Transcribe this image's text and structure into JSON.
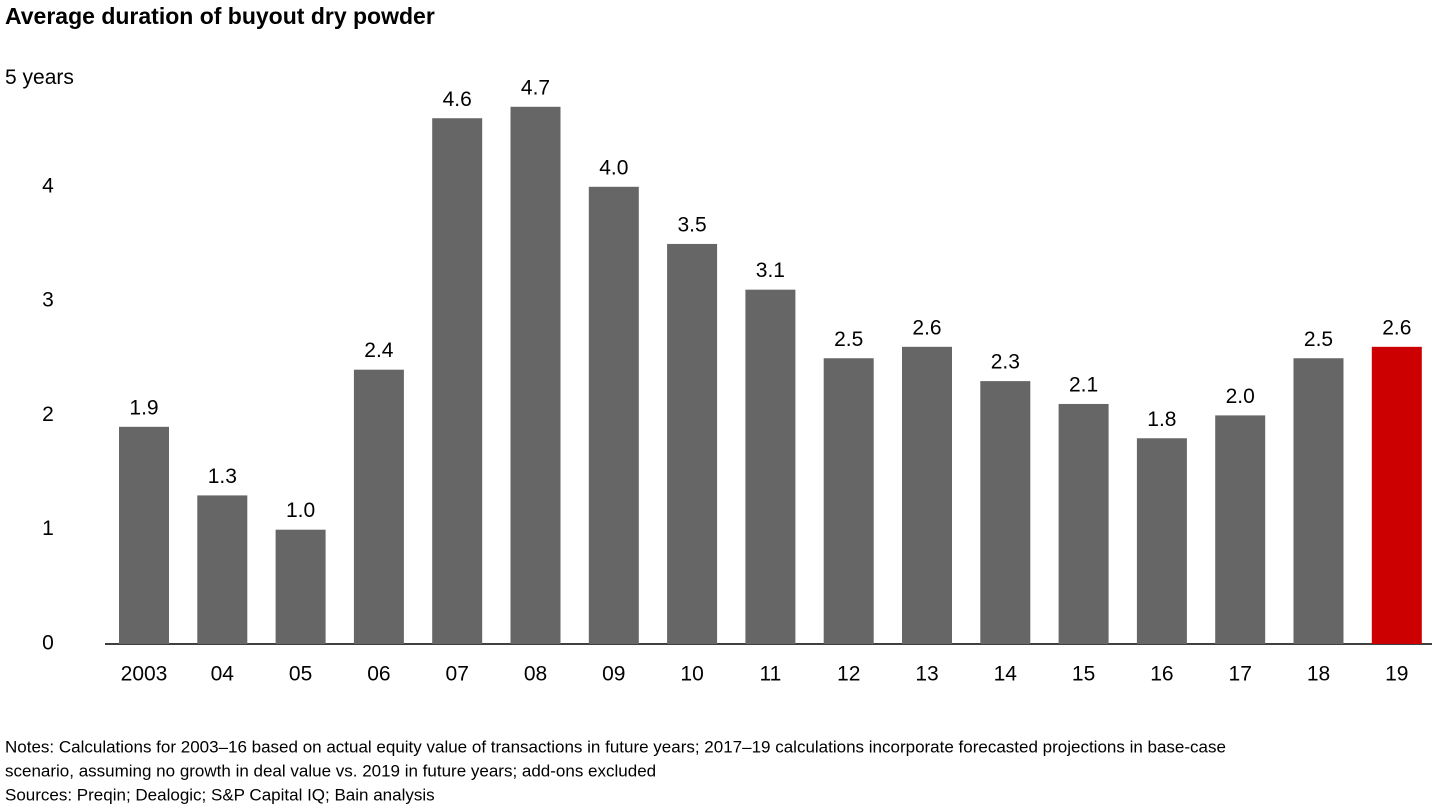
{
  "chart_data": {
    "type": "bar",
    "title": "Average duration of buyout dry powder",
    "categories": [
      "2003",
      "04",
      "05",
      "06",
      "07",
      "08",
      "09",
      "10",
      "11",
      "12",
      "13",
      "14",
      "15",
      "16",
      "17",
      "18",
      "19"
    ],
    "values": [
      1.9,
      1.3,
      1.0,
      2.4,
      4.6,
      4.7,
      4.0,
      3.5,
      3.1,
      2.5,
      2.6,
      2.3,
      2.1,
      1.8,
      2.0,
      2.5,
      2.6
    ],
    "value_labels": [
      "1.9",
      "1.3",
      "1.0",
      "2.4",
      "4.6",
      "4.7",
      "4.0",
      "3.5",
      "3.1",
      "2.5",
      "2.6",
      "2.3",
      "2.1",
      "1.8",
      "2.0",
      "2.5",
      "2.6"
    ],
    "colors": [
      "#666666",
      "#666666",
      "#666666",
      "#666666",
      "#666666",
      "#666666",
      "#666666",
      "#666666",
      "#666666",
      "#666666",
      "#666666",
      "#666666",
      "#666666",
      "#666666",
      "#666666",
      "#666666",
      "#cc0000"
    ],
    "ylim": [
      0,
      5
    ],
    "yticks": [
      0,
      1,
      2,
      3,
      4,
      {
        "value": 5,
        "label": "5 years"
      }
    ],
    "grid": false
  },
  "notes": [
    "Notes: Calculations for 2003–16 based on actual equity value of transactions in future years; 2017–19 calculations incorporate forecasted projections in base-case",
    "scenario, assuming no growth in deal value vs. 2019 in future years; add-ons excluded"
  ],
  "sources": "Sources: Preqin; Dealogic; S&P Capital IQ; Bain analysis"
}
